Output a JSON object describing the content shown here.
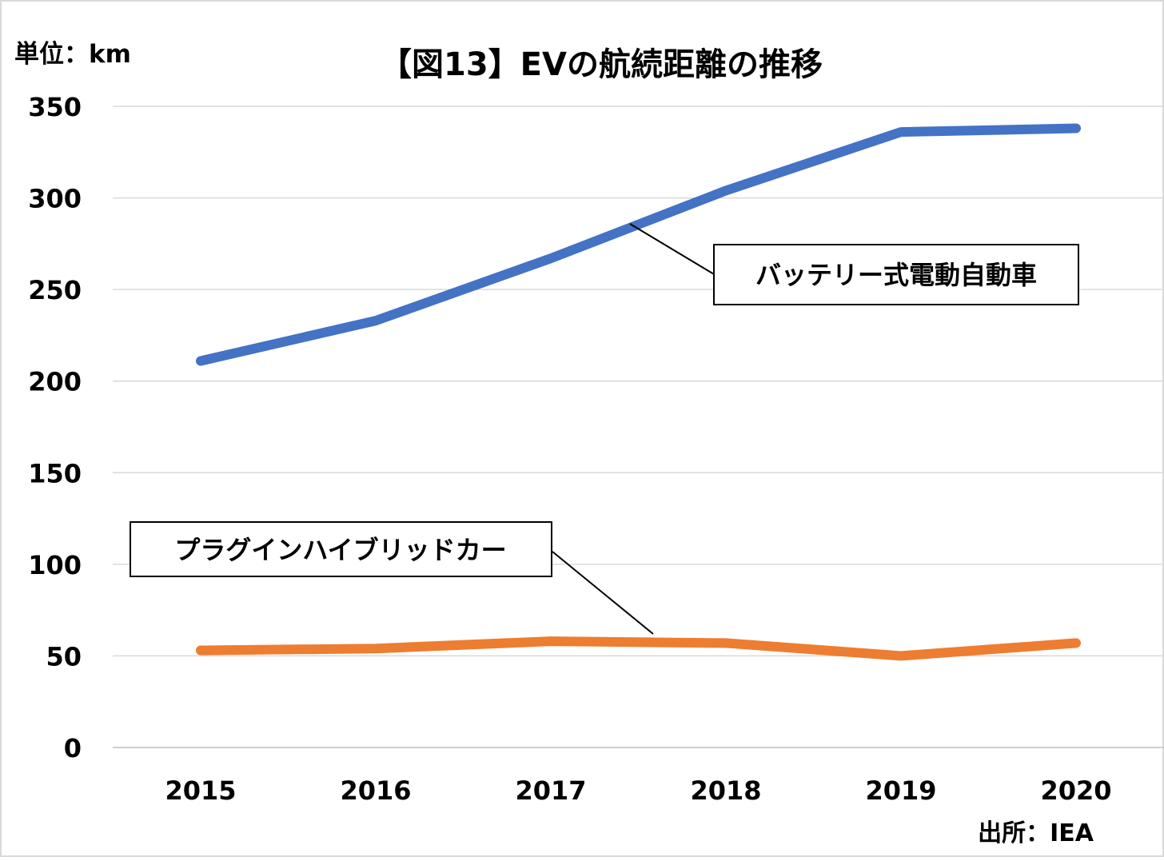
{
  "chart_data": {
    "type": "line",
    "title": "【図13】EVの航続距離の推移",
    "unit_label": "単位：km",
    "source": "出所：IEA",
    "x": [
      "2015",
      "2016",
      "2017",
      "2018",
      "2019",
      "2020"
    ],
    "ylim": [
      0,
      350
    ],
    "yticks": [
      "0",
      "50",
      "100",
      "150",
      "200",
      "250",
      "300",
      "350"
    ],
    "grid": true,
    "series": [
      {
        "name": "バッテリー式電動自動車",
        "color": "#4472c4",
        "values": [
          211,
          233,
          267,
          304,
          336,
          338
        ]
      },
      {
        "name": "プラグインハイブリッドカー",
        "color": "#ed7d31",
        "values": [
          53,
          54,
          58,
          57,
          50,
          57
        ]
      }
    ]
  }
}
